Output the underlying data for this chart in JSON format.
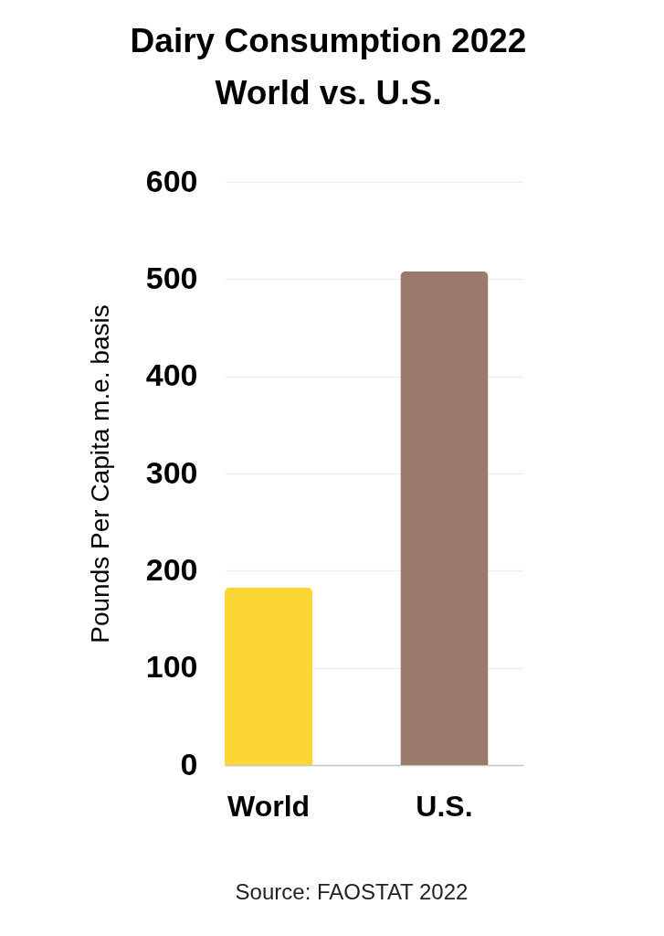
{
  "chart_data": {
    "type": "bar",
    "title": "Dairy Consumption 2022\nWorld vs. U.S.",
    "ylabel": "Pounds Per Capita m.e. basis",
    "categories": [
      "World",
      "U.S."
    ],
    "values": [
      183,
      508
    ],
    "colors": [
      "#fcd634",
      "#9a7a6a"
    ],
    "ylim": [
      0,
      600
    ],
    "yticks": [
      0,
      100,
      200,
      300,
      400,
      500,
      600
    ],
    "grid": "y",
    "annotations": [
      "Source: FAOSTAT 2022"
    ]
  }
}
